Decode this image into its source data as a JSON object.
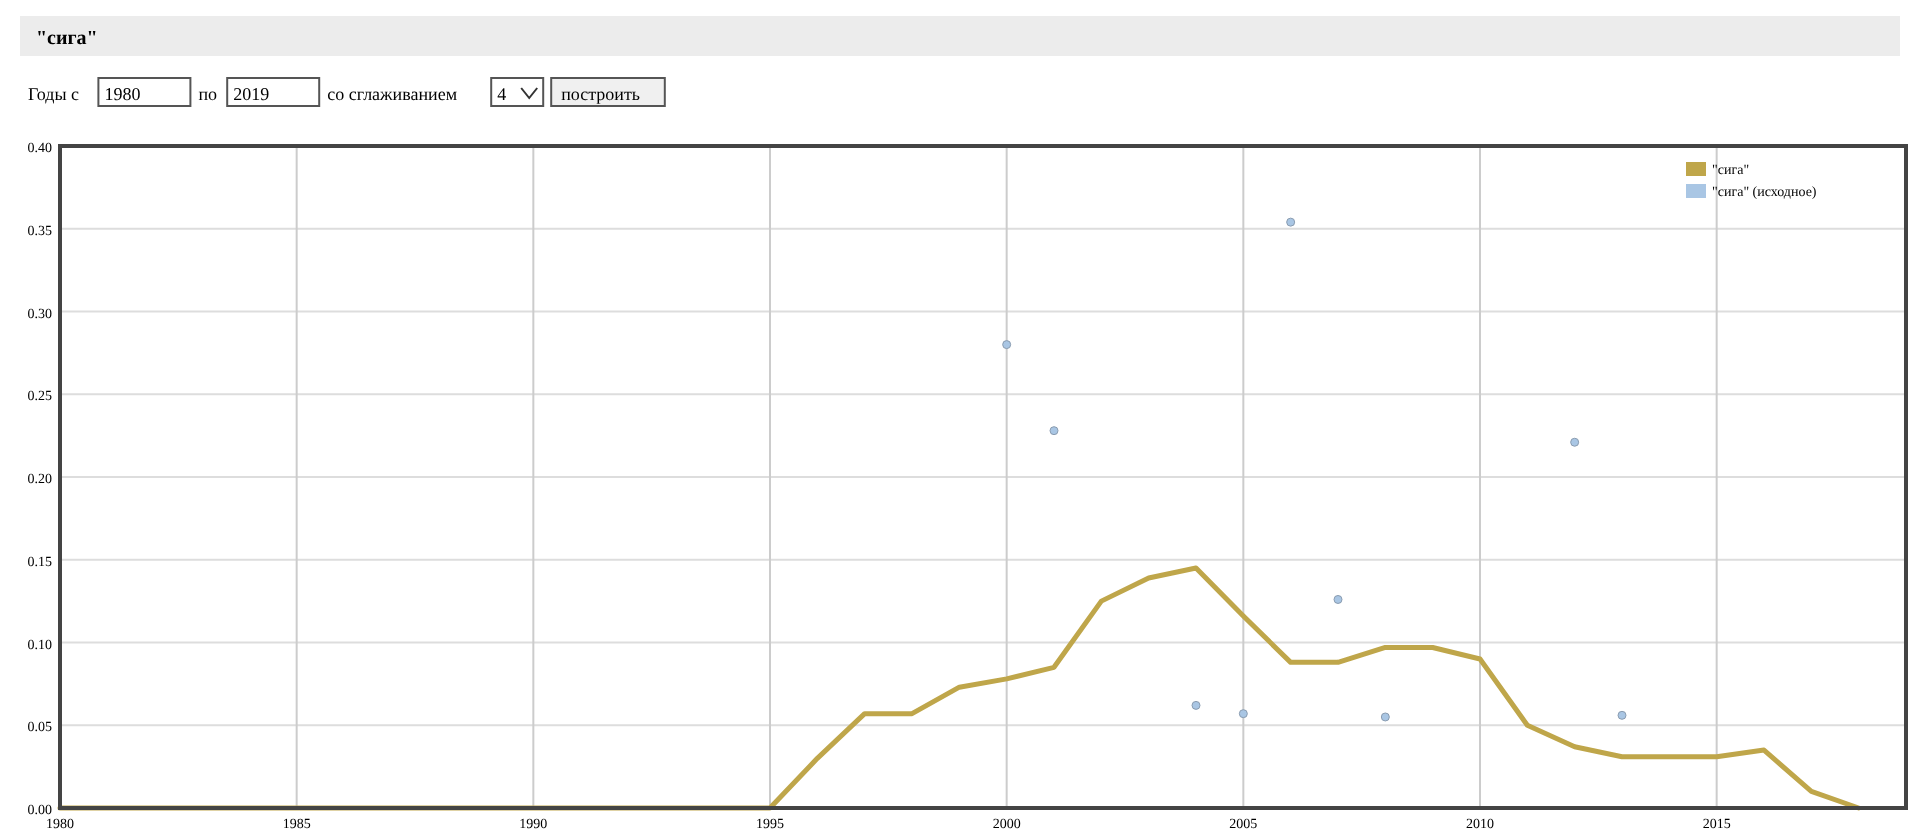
{
  "chart_data": {
    "type": "line",
    "title": "\"сига\"",
    "annotations": [
      "Годы с",
      "1980",
      "по",
      "2019",
      "со сглаживанием",
      "4",
      "построить"
    ],
    "x": [
      1980,
      1981,
      1982,
      1983,
      1984,
      1985,
      1986,
      1987,
      1988,
      1989,
      1990,
      1991,
      1992,
      1993,
      1994,
      1995,
      1996,
      1997,
      1998,
      1999,
      2000,
      2001,
      2002,
      2003,
      2004,
      2005,
      2006,
      2007,
      2008,
      2009,
      2010,
      2011,
      2012,
      2013,
      2014,
      2015,
      2016,
      2017,
      2018
    ],
    "series": [
      {
        "name": "\"сига\"",
        "color": "#bfa64a",
        "values": [
          0,
          0,
          0,
          0,
          0,
          0,
          0,
          0,
          0,
          0,
          0,
          0,
          0,
          0,
          0,
          0,
          0.03,
          0.057,
          0.057,
          0.073,
          0.078,
          0.085,
          0.125,
          0.139,
          0.145,
          0.116,
          0.088,
          0.088,
          0.097,
          0.097,
          0.09,
          0.05,
          0.037,
          0.031,
          0.031,
          0.031,
          0.035,
          0.01,
          0
        ]
      },
      {
        "name": "\"сига\" (исходное)",
        "color": "#a9c6e4",
        "type": "scatter",
        "marker": "circle",
        "x": [
          2000,
          2001,
          2004,
          2005,
          2006,
          2007,
          2008,
          2012,
          2013
        ],
        "values": [
          0.28,
          0.228,
          0.062,
          0.057,
          0.354,
          0.126,
          0.055,
          0.221,
          0.056
        ]
      }
    ],
    "xlim": [
      1980,
      2019
    ],
    "xticks": [
      1980,
      1985,
      1990,
      1995,
      2000,
      2005,
      2010,
      2015
    ],
    "ylim": [
      0,
      0.4
    ],
    "yticks": [
      {
        "value": 0,
        "label": "0.00"
      },
      {
        "value": 0.05,
        "label": "0.05"
      },
      {
        "value": 0.1,
        "label": "0.10"
      },
      {
        "value": 0.15,
        "label": "0.15"
      },
      {
        "value": 0.2,
        "label": "0.20"
      },
      {
        "value": 0.25,
        "label": "0.25"
      },
      {
        "value": 0.3,
        "label": "0.30"
      },
      {
        "value": 0.35,
        "label": "0.35"
      },
      {
        "value": 0.4,
        "label": "0.40"
      }
    ],
    "grid": true,
    "legend": "top right"
  }
}
